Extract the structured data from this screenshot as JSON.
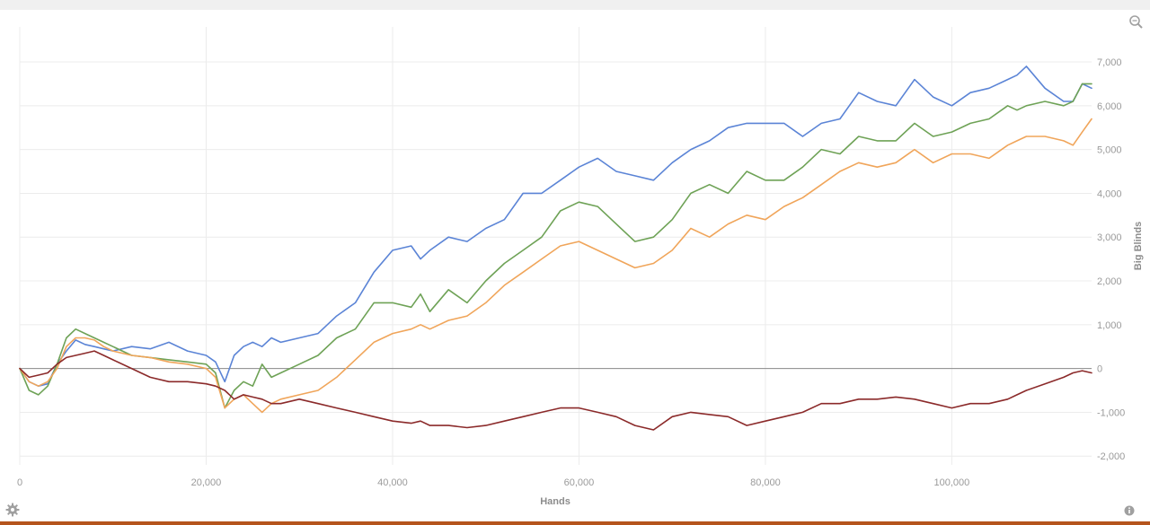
{
  "chart_data": {
    "type": "line",
    "title": "",
    "xlabel": "Hands",
    "ylabel": "Big Blinds",
    "xlim": [
      0,
      115000
    ],
    "ylim": [
      -2200,
      7800
    ],
    "x_ticks": [
      0,
      20000,
      40000,
      60000,
      80000,
      100000
    ],
    "x_tick_labels": [
      "0",
      "20,000",
      "40,000",
      "60,000",
      "80,000",
      "100,000"
    ],
    "y_ticks": [
      -2000,
      -1000,
      0,
      1000,
      2000,
      3000,
      4000,
      5000,
      6000,
      7000
    ],
    "y_tick_labels": [
      "-2,000",
      "-1,000",
      "0",
      "1,000",
      "2,000",
      "3,000",
      "4,000",
      "5,000",
      "6,000",
      "7,000"
    ],
    "grid": true,
    "legend": "none",
    "x": [
      0,
      1000,
      2000,
      3000,
      4000,
      5000,
      6000,
      7000,
      8000,
      9000,
      10000,
      12000,
      14000,
      16000,
      18000,
      20000,
      21000,
      22000,
      23000,
      24000,
      25000,
      26000,
      27000,
      28000,
      30000,
      32000,
      34000,
      36000,
      38000,
      40000,
      42000,
      43000,
      44000,
      46000,
      48000,
      50000,
      52000,
      54000,
      56000,
      58000,
      60000,
      62000,
      64000,
      66000,
      68000,
      70000,
      72000,
      74000,
      76000,
      78000,
      80000,
      82000,
      84000,
      86000,
      88000,
      90000,
      92000,
      94000,
      96000,
      98000,
      100000,
      102000,
      104000,
      106000,
      107000,
      108000,
      110000,
      112000,
      113000,
      114000,
      115000
    ],
    "series": [
      {
        "color": "#5b84d6",
        "values": [
          0,
          -300,
          -400,
          -350,
          100,
          400,
          650,
          550,
          500,
          450,
          400,
          500,
          450,
          600,
          400,
          300,
          150,
          -300,
          300,
          500,
          600,
          500,
          700,
          600,
          700,
          800,
          1200,
          1500,
          2200,
          2700,
          2800,
          2500,
          2700,
          3000,
          2900,
          3200,
          3400,
          4000,
          4000,
          4300,
          4600,
          4800,
          4500,
          4400,
          4300,
          4700,
          5000,
          5200,
          5500,
          5600,
          5600,
          5600,
          5300,
          5600,
          5700,
          6300,
          6100,
          6000,
          6600,
          6200,
          6000,
          6300,
          6400,
          6600,
          6700,
          6900,
          6400,
          6100,
          6100,
          6500,
          6400
        ]
      },
      {
        "color": "#6ea256",
        "values": [
          0,
          -500,
          -600,
          -400,
          100,
          700,
          900,
          800,
          700,
          600,
          500,
          300,
          250,
          200,
          150,
          100,
          -100,
          -900,
          -500,
          -300,
          -400,
          100,
          -200,
          -100,
          100,
          300,
          700,
          900,
          1500,
          1500,
          1400,
          1700,
          1300,
          1800,
          1500,
          2000,
          2400,
          2700,
          3000,
          3600,
          3800,
          3700,
          3300,
          2900,
          3000,
          3400,
          4000,
          4200,
          4000,
          4500,
          4300,
          4300,
          4600,
          5000,
          4900,
          5300,
          5200,
          5200,
          5600,
          5300,
          5400,
          5600,
          5700,
          6000,
          5900,
          6000,
          6100,
          6000,
          6100,
          6500,
          6500
        ]
      },
      {
        "color": "#f0a55a",
        "values": [
          0,
          -300,
          -400,
          -300,
          0,
          500,
          700,
          700,
          650,
          500,
          400,
          300,
          250,
          150,
          100,
          0,
          -200,
          -900,
          -700,
          -600,
          -800,
          -1000,
          -800,
          -700,
          -600,
          -500,
          -200,
          200,
          600,
          800,
          900,
          1000,
          900,
          1100,
          1200,
          1500,
          1900,
          2200,
          2500,
          2800,
          2900,
          2700,
          2500,
          2300,
          2400,
          2700,
          3200,
          3000,
          3300,
          3500,
          3400,
          3700,
          3900,
          4200,
          4500,
          4700,
          4600,
          4700,
          5000,
          4700,
          4900,
          4900,
          4800,
          5100,
          5200,
          5300,
          5300,
          5200,
          5100,
          5400,
          5700
        ]
      },
      {
        "color": "#8b2a2a",
        "values": [
          0,
          -200,
          -150,
          -100,
          100,
          250,
          300,
          350,
          400,
          300,
          200,
          0,
          -200,
          -300,
          -300,
          -350,
          -400,
          -500,
          -700,
          -600,
          -650,
          -700,
          -800,
          -800,
          -700,
          -800,
          -900,
          -1000,
          -1100,
          -1200,
          -1250,
          -1200,
          -1300,
          -1300,
          -1350,
          -1300,
          -1200,
          -1100,
          -1000,
          -900,
          -900,
          -1000,
          -1100,
          -1300,
          -1400,
          -1100,
          -1000,
          -1050,
          -1100,
          -1300,
          -1200,
          -1100,
          -1000,
          -800,
          -800,
          -700,
          -700,
          -650,
          -700,
          -800,
          -900,
          -800,
          -800,
          -700,
          -600,
          -500,
          -350,
          -200,
          -100,
          -50,
          -100
        ]
      }
    ]
  }
}
